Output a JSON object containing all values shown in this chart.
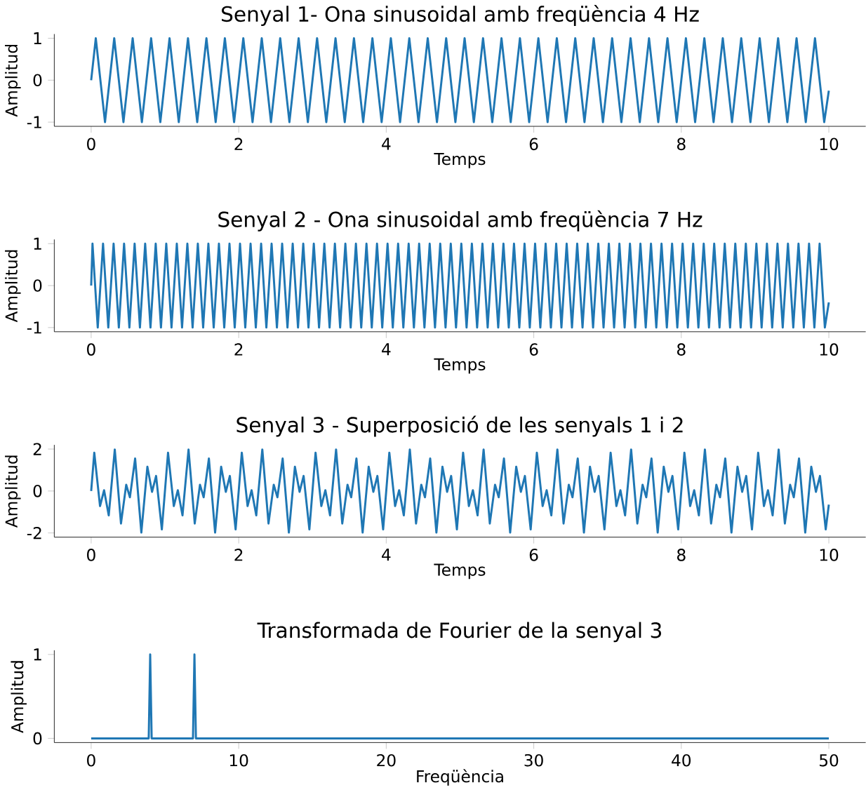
{
  "chart_data": [
    {
      "type": "line",
      "title": "Senyal 1- Ona sinusoidal amb freqüència 4 Hz",
      "xlabel": "Temps",
      "ylabel": "Amplitud",
      "color": "#1f77b4",
      "xlim": [
        -0.5,
        10.5
      ],
      "ylim": [
        -1.1,
        1.1
      ],
      "xticks": [
        0,
        2,
        4,
        6,
        8,
        10
      ],
      "yticks": [
        -1,
        0,
        1
      ],
      "x": [
        0,
        0.0625,
        0.1875,
        0.3125,
        0.4375,
        0.5625,
        0.6875,
        0.8125,
        0.9375,
        1.0625,
        1.1875,
        1.3125,
        1.4375,
        1.5625,
        1.6875,
        1.8125,
        1.9375,
        2.0625,
        2.1875,
        2.3125,
        2.4375,
        2.5625,
        2.6875,
        2.8125,
        2.9375,
        3.0625,
        3.1875,
        3.3125,
        3.4375,
        3.5625,
        3.6875,
        3.8125,
        3.9375,
        4.0625,
        4.1875,
        4.3125,
        4.4375,
        4.5625,
        4.6875,
        4.8125,
        4.9375,
        5.0625,
        5.1875,
        5.3125,
        5.4375,
        5.5625,
        5.6875,
        5.8125,
        5.9375,
        6.0625,
        6.1875,
        6.3125,
        6.4375,
        6.5625,
        6.6875,
        6.8125,
        6.9375,
        7.0625,
        7.1875,
        7.3125,
        7.4375,
        7.5625,
        7.6875,
        7.8125,
        7.9375,
        8.0625,
        8.1875,
        8.3125,
        8.4375,
        8.5625,
        8.6875,
        8.8125,
        8.9375,
        9.0625,
        9.1875,
        9.3125,
        9.4375,
        9.5625,
        9.6875,
        9.8125,
        9.9375,
        10
      ],
      "values": [
        0,
        1,
        -1,
        1,
        -1,
        1,
        -1,
        1,
        -1,
        1,
        -1,
        1,
        -1,
        1,
        -1,
        1,
        -1,
        1,
        -1,
        1,
        -1,
        1,
        -1,
        1,
        -1,
        1,
        -1,
        1,
        -1,
        1,
        -1,
        1,
        -1,
        1,
        -1,
        1,
        -1,
        1,
        -1,
        1,
        -1,
        1,
        -1,
        1,
        -1,
        1,
        -1,
        1,
        -1,
        1,
        -1,
        1,
        -1,
        1,
        -1,
        1,
        -1,
        1,
        -1,
        1,
        -1,
        1,
        -1,
        1,
        -1,
        1,
        -1,
        1,
        -1,
        1,
        -1,
        1,
        -1,
        1,
        -1,
        1,
        -1,
        1,
        -1,
        1,
        -1,
        -0.25
      ]
    },
    {
      "type": "line",
      "title": "Senyal 2 - Ona sinusoidal amb freqüència 7 Hz",
      "xlabel": "Temps",
      "ylabel": "Amplitud",
      "color": "#1f77b4",
      "xlim": [
        -0.5,
        10.5
      ],
      "ylim": [
        -1.1,
        1.1
      ],
      "xticks": [
        0,
        2,
        4,
        6,
        8,
        10
      ],
      "yticks": [
        -1,
        0,
        1
      ],
      "x": [
        0,
        0.018,
        0.089,
        0.161,
        0.232,
        0.304,
        0.375,
        0.446,
        0.518,
        0.589,
        0.661,
        0.732,
        0.804,
        0.875,
        0.946,
        1.018,
        1.089,
        1.161,
        1.232,
        1.304,
        1.375,
        1.446,
        1.518,
        1.589,
        1.661,
        1.732,
        1.804,
        1.875,
        1.946,
        2.018,
        2.089,
        2.161,
        2.232,
        2.304,
        2.375,
        2.446,
        2.518,
        2.589,
        2.661,
        2.732,
        2.804,
        2.875,
        2.946,
        3.018,
        3.089,
        3.161,
        3.232,
        3.304,
        3.375,
        3.446,
        3.518,
        3.589,
        3.661,
        3.732,
        3.804,
        3.875,
        3.946,
        4.018,
        4.089,
        4.161,
        4.232,
        4.304,
        4.375,
        4.446,
        4.518,
        4.589,
        4.661,
        4.732,
        4.804,
        4.875,
        4.946,
        5.018,
        5.089,
        5.161,
        5.232,
        5.304,
        5.375,
        5.446,
        5.518,
        5.589,
        5.661,
        5.732,
        5.804,
        5.875,
        5.946,
        6.018,
        6.089,
        6.161,
        6.232,
        6.304,
        6.375,
        6.446,
        6.518,
        6.589,
        6.661,
        6.732,
        6.804,
        6.875,
        6.946,
        7.018,
        7.089,
        7.161,
        7.232,
        7.304,
        7.375,
        7.446,
        7.518,
        7.589,
        7.661,
        7.732,
        7.804,
        7.875,
        7.946,
        8.018,
        8.089,
        8.161,
        8.232,
        8.304,
        8.375,
        8.446,
        8.518,
        8.589,
        8.661,
        8.732,
        8.804,
        8.875,
        8.946,
        9.018,
        9.089,
        9.161,
        9.232,
        9.304,
        9.375,
        9.446,
        9.518,
        9.589,
        9.661,
        9.732,
        9.804,
        9.875,
        9.946,
        10
      ],
      "values": [
        0,
        1,
        -1,
        1,
        -1,
        1,
        -1,
        1,
        -1,
        1,
        -1,
        1,
        -1,
        1,
        -1,
        1,
        -1,
        1,
        -1,
        1,
        -1,
        1,
        -1,
        1,
        -1,
        1,
        -1,
        1,
        -1,
        1,
        -1,
        1,
        -1,
        1,
        -1,
        1,
        -1,
        1,
        -1,
        1,
        -1,
        1,
        -1,
        1,
        -1,
        1,
        -1,
        1,
        -1,
        1,
        -1,
        1,
        -1,
        1,
        -1,
        1,
        -1,
        1,
        -1,
        1,
        -1,
        1,
        -1,
        1,
        -1,
        1,
        -1,
        1,
        -1,
        1,
        -1,
        1,
        -1,
        1,
        -1,
        1,
        -1,
        1,
        -1,
        1,
        -1,
        1,
        -1,
        1,
        -1,
        1,
        -1,
        1,
        -1,
        1,
        -1,
        1,
        -1,
        1,
        -1,
        1,
        -1,
        1,
        -1,
        1,
        -1,
        1,
        -1,
        1,
        -1,
        1,
        -1,
        1,
        -1,
        1,
        -1,
        1,
        -1,
        1,
        -1,
        1,
        -1,
        1,
        -1,
        1,
        -1,
        1,
        -1,
        1,
        -1,
        1,
        -1,
        1,
        -1,
        1,
        -1,
        1,
        -1,
        1,
        -1,
        1,
        -1,
        1,
        -1,
        1,
        -1,
        -0.4
      ]
    },
    {
      "type": "line",
      "title": "Senyal 3 - Superposició de les senyals 1 i  2",
      "xlabel": "Temps",
      "ylabel": "Amplitud",
      "color": "#1f77b4",
      "xlim": [
        -0.5,
        10.5
      ],
      "ylim": [
        -2.2,
        2.2
      ],
      "xticks": [
        0,
        2,
        4,
        6,
        8,
        10
      ],
      "yticks": [
        -2,
        0,
        2
      ],
      "x": [
        0,
        0.042,
        0.12,
        0.175,
        0.238,
        0.32,
        0.404,
        0.475,
        0.525,
        0.596,
        0.68,
        0.762,
        0.825,
        0.88,
        0.958,
        1.042,
        1.12,
        1.175,
        1.238,
        1.32,
        1.404,
        1.475,
        1.525,
        1.596,
        1.68,
        1.762,
        1.825,
        1.88,
        1.958,
        2.042,
        2.12,
        2.175,
        2.238,
        2.32,
        2.404,
        2.475,
        2.525,
        2.596,
        2.68,
        2.762,
        2.825,
        2.88,
        2.958,
        3.042,
        3.12,
        3.175,
        3.238,
        3.32,
        3.404,
        3.475,
        3.525,
        3.596,
        3.68,
        3.762,
        3.825,
        3.88,
        3.958,
        4.042,
        4.12,
        4.175,
        4.238,
        4.32,
        4.404,
        4.475,
        4.525,
        4.596,
        4.68,
        4.762,
        4.825,
        4.88,
        4.958,
        5.042,
        5.12,
        5.175,
        5.238,
        5.32,
        5.404,
        5.475,
        5.525,
        5.596,
        5.68,
        5.762,
        5.825,
        5.88,
        5.958,
        6.042,
        6.12,
        6.175,
        6.238,
        6.32,
        6.404,
        6.475,
        6.525,
        6.596,
        6.68,
        6.762,
        6.825,
        6.88,
        6.958,
        7.042,
        7.12,
        7.175,
        7.238,
        7.32,
        7.404,
        7.475,
        7.525,
        7.596,
        7.68,
        7.762,
        7.825,
        7.88,
        7.958,
        8.042,
        8.12,
        8.175,
        8.238,
        8.32,
        8.404,
        8.475,
        8.525,
        8.596,
        8.68,
        8.762,
        8.825,
        8.88,
        8.958,
        9.042,
        9.12,
        9.175,
        9.238,
        9.32,
        9.404,
        9.475,
        9.525,
        9.596,
        9.68,
        9.762,
        9.825,
        9.88,
        9.958,
        10
      ],
      "values": [
        0,
        1.83,
        -0.72,
        0.04,
        -1.16,
        1.98,
        -1.55,
        0.3,
        -0.3,
        1.55,
        -1.98,
        1.16,
        -0.04,
        0.72,
        -1.83,
        1.83,
        -0.72,
        0.04,
        -1.16,
        1.98,
        -1.55,
        0.3,
        -0.3,
        1.55,
        -1.98,
        1.16,
        -0.04,
        0.72,
        -1.83,
        1.83,
        -0.72,
        0.04,
        -1.16,
        1.98,
        -1.55,
        0.3,
        -0.3,
        1.55,
        -1.98,
        1.16,
        -0.04,
        0.72,
        -1.83,
        1.83,
        -0.72,
        0.04,
        -1.16,
        1.98,
        -1.55,
        0.3,
        -0.3,
        1.55,
        -1.98,
        1.16,
        -0.04,
        0.72,
        -1.83,
        1.83,
        -0.72,
        0.04,
        -1.16,
        1.98,
        -1.55,
        0.3,
        -0.3,
        1.55,
        -1.98,
        1.16,
        -0.04,
        0.72,
        -1.83,
        1.83,
        -0.72,
        0.04,
        -1.16,
        1.98,
        -1.55,
        0.3,
        -0.3,
        1.55,
        -1.98,
        1.16,
        -0.04,
        0.72,
        -1.83,
        1.83,
        -0.72,
        0.04,
        -1.16,
        1.98,
        -1.55,
        0.3,
        -0.3,
        1.55,
        -1.98,
        1.16,
        -0.04,
        0.72,
        -1.83,
        1.83,
        -0.72,
        0.04,
        -1.16,
        1.98,
        -1.55,
        0.3,
        -0.3,
        1.55,
        -1.98,
        1.16,
        -0.04,
        0.72,
        -1.83,
        1.83,
        -0.72,
        0.04,
        -1.16,
        1.98,
        -1.55,
        0.3,
        -0.3,
        1.55,
        -1.98,
        1.16,
        -0.04,
        0.72,
        -1.83,
        1.83,
        -0.72,
        0.04,
        -1.16,
        1.98,
        -1.55,
        0.3,
        -0.3,
        1.55,
        -1.98,
        1.16,
        -0.04,
        0.72,
        -1.83,
        -0.65
      ]
    },
    {
      "type": "line",
      "title": "Transformada de Fourier de la senyal 3",
      "xlabel": "Freqüència",
      "ylabel": "Amplitud",
      "color": "#1f77b4",
      "xlim": [
        -2.5,
        52.5
      ],
      "ylim": [
        -0.05,
        1.05
      ],
      "xticks": [
        0,
        10,
        20,
        30,
        40,
        50
      ],
      "yticks": [
        0,
        1
      ],
      "x": [
        0,
        3.9,
        4,
        4.1,
        6.9,
        7,
        7.1,
        50
      ],
      "values": [
        0,
        0,
        1,
        0,
        0,
        1,
        0,
        0
      ]
    }
  ]
}
